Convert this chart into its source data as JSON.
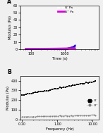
{
  "panel_a": {
    "label": "A",
    "xlabel": "Time (s)",
    "ylabel": "Modulus (Pa)",
    "xlim": [
      50,
      10000
    ],
    "ylim": [
      0,
      60
    ],
    "yticks": [
      0,
      10,
      20,
      30,
      40,
      50,
      60
    ],
    "xtick_labels": [
      "100",
      "1000"
    ],
    "xtick_vals": [
      100,
      1000
    ],
    "Gprime_color": "#1010cc",
    "Gdprime_color": "#dd00dd",
    "legend_Gp": "G' Pa",
    "legend_Gdp": "G'' Pa"
  },
  "panel_b": {
    "label": "B",
    "xlabel": "Frequency (Hz)",
    "ylabel": "Modulus (Pa)",
    "xlim": [
      0.09,
      15
    ],
    "ylim": [
      0,
      450
    ],
    "yticks": [
      0,
      100,
      200,
      300,
      400
    ],
    "xtick_vals": [
      0.1,
      1.0,
      10.0
    ],
    "xtick_labels": [
      "0.10",
      "1.00",
      "10.00"
    ],
    "Gprime_color": "#000000",
    "Gdprime_color": "#666666",
    "legend_Gp": "G'",
    "legend_Gdp": "G''"
  }
}
